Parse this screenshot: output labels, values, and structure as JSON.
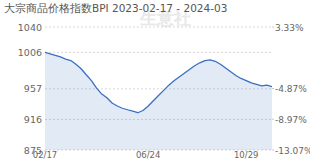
{
  "chart_data": {
    "type": "line",
    "title": "大宗商品价格指数BPI 2023-02-17 - 2024-03",
    "annotations": [
      "生意社"
    ],
    "categories": [
      "02/17",
      null,
      null,
      null,
      null,
      null,
      null,
      null,
      null,
      null,
      null,
      null,
      null,
      null,
      null,
      null,
      null,
      null,
      null,
      null,
      "06/24",
      null,
      null,
      null,
      null,
      null,
      null,
      null,
      null,
      null,
      null,
      null,
      null,
      null,
      null,
      null,
      null,
      null,
      null,
      "10/29",
      null,
      null,
      null,
      null,
      null
    ],
    "series": [
      {
        "name": "BPI",
        "color": "#3a6fc4",
        "values": [
          1006,
          1004,
          1002,
          1000,
          997,
          995,
          990,
          984,
          976,
          968,
          958,
          950,
          945,
          938,
          934,
          931,
          929,
          927,
          925,
          928,
          934,
          941,
          948,
          955,
          962,
          968,
          973,
          978,
          983,
          988,
          992,
          995,
          996,
          994,
          990,
          985,
          980,
          975,
          971,
          968,
          965,
          963,
          961,
          962,
          960
        ]
      }
    ],
    "ylim": [
      875,
      1040
    ],
    "yticks": [
      1040,
      1006,
      957,
      916,
      875
    ],
    "y2lim": [
      -13.07,
      3.33
    ],
    "y2ticks": [
      {
        "value": 3.33,
        "label": "3.33%"
      },
      {
        "value": -4.87,
        "label": "-4.87%"
      },
      {
        "value": -8.97,
        "label": "-8.97%"
      },
      {
        "value": -13.07,
        "label": "-13.07%"
      }
    ],
    "grid": true
  }
}
